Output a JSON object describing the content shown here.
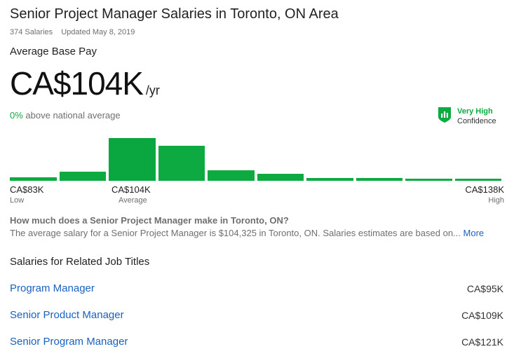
{
  "header": {
    "title": "Senior Project Manager Salaries in Toronto, ON Area",
    "salaries_count": "374 Salaries",
    "updated": "Updated May 8, 2019"
  },
  "pay": {
    "label": "Average Base Pay",
    "value": "CA$104K",
    "unit": "/yr",
    "national_pct": "0%",
    "national_text": "above national average"
  },
  "confidence": {
    "level": "Very High",
    "label": "Confidence",
    "icon": "bar-chart-shield-icon",
    "color": "#0caa41"
  },
  "chart_data": {
    "type": "bar",
    "bins": 10,
    "relative_heights": [
      0.09,
      0.21,
      1.0,
      0.82,
      0.25,
      0.16,
      0.07,
      0.06,
      0.05,
      0.04
    ],
    "peak_index": 2,
    "accent_color": "#0caa41",
    "peak_color": "#0aa63f",
    "low": {
      "value": "CA$83K",
      "label": "Low"
    },
    "average": {
      "value": "CA$104K",
      "label": "Average"
    },
    "high": {
      "value": "CA$138K",
      "label": "High"
    }
  },
  "faq": {
    "question": "How much does a Senior Project Manager make in Toronto, ON?",
    "answer": "The average salary for a Senior Project Manager is $104,325 in Toronto, ON. Salaries estimates are based on...",
    "more_label": "More"
  },
  "related": {
    "title": "Salaries for Related Job Titles",
    "rows": [
      {
        "title": "Program Manager",
        "salary": "CA$95K"
      },
      {
        "title": "Senior Product Manager",
        "salary": "CA$109K"
      },
      {
        "title": "Senior Program Manager",
        "salary": "CA$121K"
      }
    ]
  },
  "colors": {
    "link": "#1861bf",
    "accent": "#0caa41",
    "muted": "#6f6f6f"
  }
}
